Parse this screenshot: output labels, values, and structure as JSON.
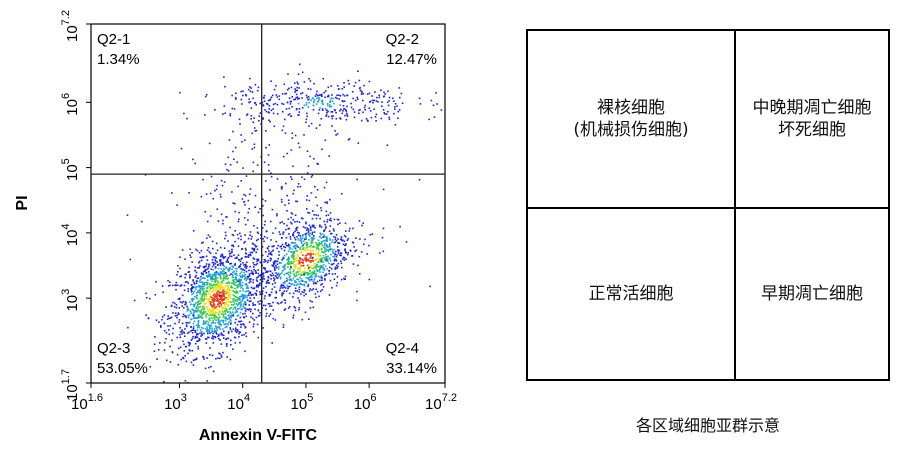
{
  "chart_data": {
    "type": "scatter",
    "xlabel": "Annexin V-FITC",
    "ylabel": "PI",
    "log_scale": true,
    "xlim_exp": [
      1.6,
      7.2
    ],
    "ylim_exp": [
      1.7,
      7.2
    ],
    "x_ticks": [
      {
        "base": "10",
        "exp": "1.6"
      },
      {
        "base": "10",
        "exp": "3"
      },
      {
        "base": "10",
        "exp": "4"
      },
      {
        "base": "10",
        "exp": "5"
      },
      {
        "base": "10",
        "exp": "6"
      },
      {
        "base": "10",
        "exp": "7.2"
      }
    ],
    "y_ticks": [
      {
        "base": "10",
        "exp": "1.7"
      },
      {
        "base": "10",
        "exp": "3"
      },
      {
        "base": "10",
        "exp": "4"
      },
      {
        "base": "10",
        "exp": "5"
      },
      {
        "base": "10",
        "exp": "6"
      },
      {
        "base": "10",
        "exp": "7.2"
      }
    ],
    "gate_x_exp": 4.3,
    "gate_y_exp": 4.9,
    "quadrants": [
      {
        "name": "Q2-1",
        "percent": "1.34%",
        "position": "top-left"
      },
      {
        "name": "Q2-2",
        "percent": "12.47%",
        "position": "top-right"
      },
      {
        "name": "Q2-3",
        "percent": "53.05%",
        "position": "bottom-left"
      },
      {
        "name": "Q2-4",
        "percent": "33.14%",
        "position": "bottom-right"
      }
    ],
    "populations": [
      {
        "center_exp": [
          3.6,
          3.0
        ],
        "spread_exp": [
          0.38,
          0.38
        ],
        "share": 0.5
      },
      {
        "center_exp": [
          5.0,
          3.6
        ],
        "spread_exp": [
          0.35,
          0.3
        ],
        "share": 0.28
      },
      {
        "center_exp": [
          5.2,
          6.0
        ],
        "spread_exp": [
          0.75,
          0.18
        ],
        "share": 0.12
      },
      {
        "center_exp": [
          4.4,
          4.4
        ],
        "spread_exp": [
          0.8,
          0.7
        ],
        "share": 0.1
      }
    ],
    "density_colors": [
      "#1d24d8",
      "#1f9ed8",
      "#2ec94a",
      "#e8e020",
      "#e83a14"
    ]
  },
  "quadrant_table": {
    "top_left": [
      "裸核细胞",
      "(机械损伤细胞)"
    ],
    "top_right": [
      "中晚期凋亡细胞",
      "坏死细胞"
    ],
    "bottom_left": [
      "正常活细胞"
    ],
    "bottom_right": [
      "早期凋亡细胞"
    ]
  },
  "caption": "各区域细胞亚群示意"
}
